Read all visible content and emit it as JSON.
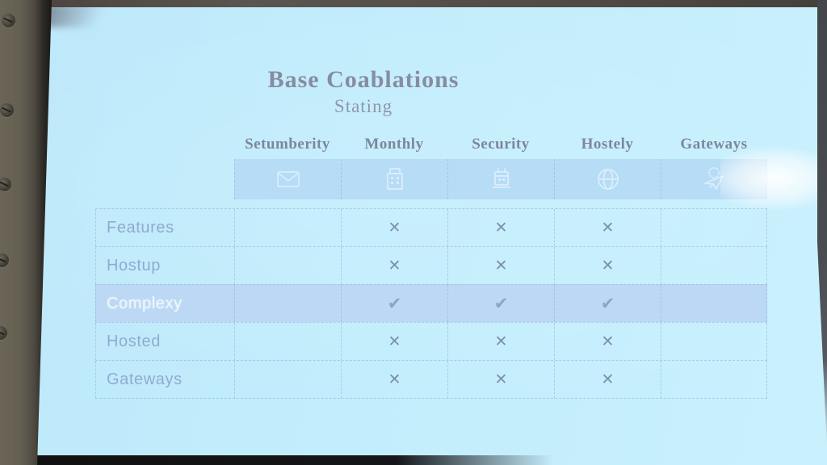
{
  "slide": {
    "title": "Base Coablations",
    "subtitle": "Stating"
  },
  "table": {
    "column_headers": [
      "Setumberity",
      "Monthly",
      "Security",
      "Hostely",
      "Gateways"
    ],
    "column_icons": [
      "envelope-icon",
      "building-icon",
      "calendar-icon",
      "globe-icon",
      "airplane-icon"
    ],
    "rows": [
      {
        "label": "Features",
        "highlighted": false,
        "cells": [
          "",
          "x",
          "x",
          "x",
          ""
        ]
      },
      {
        "label": "Hostup",
        "highlighted": false,
        "cells": [
          "",
          "x",
          "x",
          "x",
          ""
        ]
      },
      {
        "label": "Complexy",
        "highlighted": true,
        "cells": [
          "",
          "check",
          "check",
          "check",
          ""
        ]
      },
      {
        "label": "Hosted",
        "highlighted": false,
        "cells": [
          "",
          "x",
          "x",
          "x",
          ""
        ]
      },
      {
        "label": "Gateways",
        "highlighted": false,
        "cells": [
          "",
          "x",
          "x",
          "x",
          ""
        ]
      }
    ],
    "glyphs": {
      "x": "✕",
      "check": "✔"
    }
  },
  "colors": {
    "slide_bg": "#c2edfc",
    "band_bg": "#b7dcf5",
    "highlight_bg": "#bcd8f4",
    "title_color": "#868da0",
    "header_color": "#7b879c",
    "row_label_color": "#8fabd0",
    "highlight_label_color": "#ecf6fe",
    "x_mark_color": "#7c90b0",
    "check_mark_color": "#8ba4cc",
    "grid_line_color": "rgba(124,178,214,0.5)",
    "icon_stroke": "#dfeffd"
  }
}
